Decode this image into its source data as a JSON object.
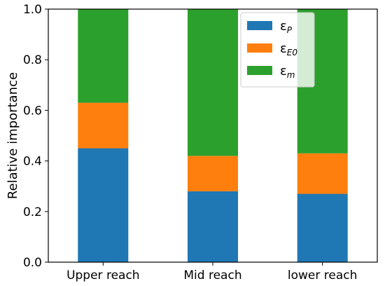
{
  "chart_data": {
    "type": "bar",
    "stacked": true,
    "categories": [
      "Upper reach",
      "Mid reach",
      "lower reach"
    ],
    "series": [
      {
        "name": "εP",
        "base": "ε",
        "sub": "P",
        "color": "#1f77b4",
        "values": [
          0.45,
          0.28,
          0.27
        ]
      },
      {
        "name": "εE0",
        "base": "ε",
        "sub": "E0",
        "color": "#ff7f0e",
        "values": [
          0.18,
          0.14,
          0.16
        ]
      },
      {
        "name": "εm",
        "base": "ε",
        "sub": "m",
        "color": "#2ca02c",
        "values": [
          0.37,
          0.58,
          0.57
        ]
      }
    ],
    "ylabel": "Relative importance",
    "xlabel": "",
    "title": "",
    "ylim": [
      0,
      1.0
    ],
    "yticks": [
      "0.0",
      "0.2",
      "0.4",
      "0.6",
      "0.8",
      "1.0"
    ],
    "legend_position": "top-right",
    "grid": false
  }
}
